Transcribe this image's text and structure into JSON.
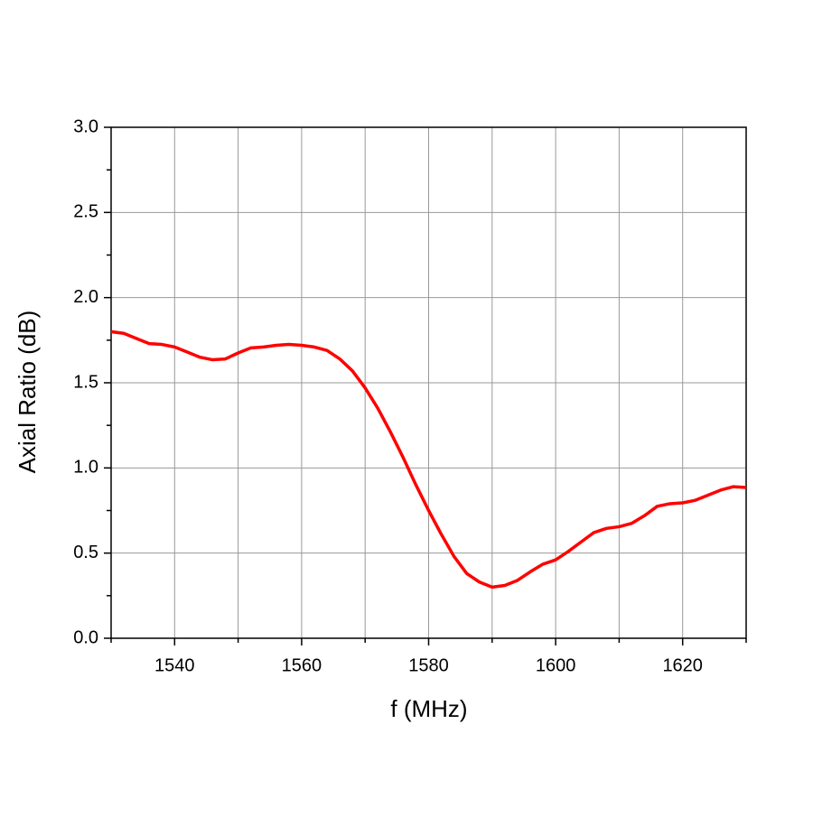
{
  "chart_data": {
    "type": "line",
    "xlabel": "f (MHz)",
    "ylabel": "Axial Ratio (dB)",
    "x": [
      1530,
      1532,
      1534,
      1536,
      1538,
      1540,
      1542,
      1544,
      1546,
      1548,
      1550,
      1552,
      1554,
      1556,
      1558,
      1560,
      1562,
      1564,
      1566,
      1568,
      1570,
      1572,
      1574,
      1576,
      1578,
      1580,
      1582,
      1584,
      1586,
      1588,
      1590,
      1592,
      1594,
      1596,
      1598,
      1600,
      1602,
      1604,
      1606,
      1608,
      1610,
      1612,
      1614,
      1616,
      1618,
      1620,
      1622,
      1624,
      1626,
      1628,
      1630
    ],
    "series": [
      {
        "color": "#ff0000",
        "values": [
          1.8,
          1.79,
          1.76,
          1.73,
          1.725,
          1.71,
          1.68,
          1.65,
          1.635,
          1.64,
          1.675,
          1.705,
          1.71,
          1.72,
          1.725,
          1.72,
          1.71,
          1.69,
          1.64,
          1.57,
          1.47,
          1.35,
          1.21,
          1.06,
          0.9,
          0.75,
          0.61,
          0.48,
          0.38,
          0.33,
          0.3,
          0.31,
          0.34,
          0.39,
          0.435,
          0.46,
          0.51,
          0.565,
          0.62,
          0.645,
          0.655,
          0.675,
          0.72,
          0.775,
          0.79,
          0.795,
          0.81,
          0.84,
          0.87,
          0.89,
          0.885
        ]
      }
    ],
    "xlim": [
      1530,
      1630
    ],
    "ylim": [
      0,
      3
    ],
    "xticks": [
      1540,
      1560,
      1580,
      1600,
      1620
    ],
    "xminorticks": [
      1530,
      1550,
      1570,
      1590,
      1610,
      1630
    ],
    "yticks": [
      {
        "value": 0,
        "label": "0.0"
      },
      0.5,
      {
        "value": 1,
        "label": "1.0"
      },
      1.5,
      {
        "value": 2,
        "label": "2.0"
      },
      2.5,
      {
        "value": 3,
        "label": "3.0"
      }
    ],
    "yminorticks": [
      0.25,
      0.75,
      1.25,
      1.75,
      2.25,
      2.75
    ],
    "grid": true
  }
}
